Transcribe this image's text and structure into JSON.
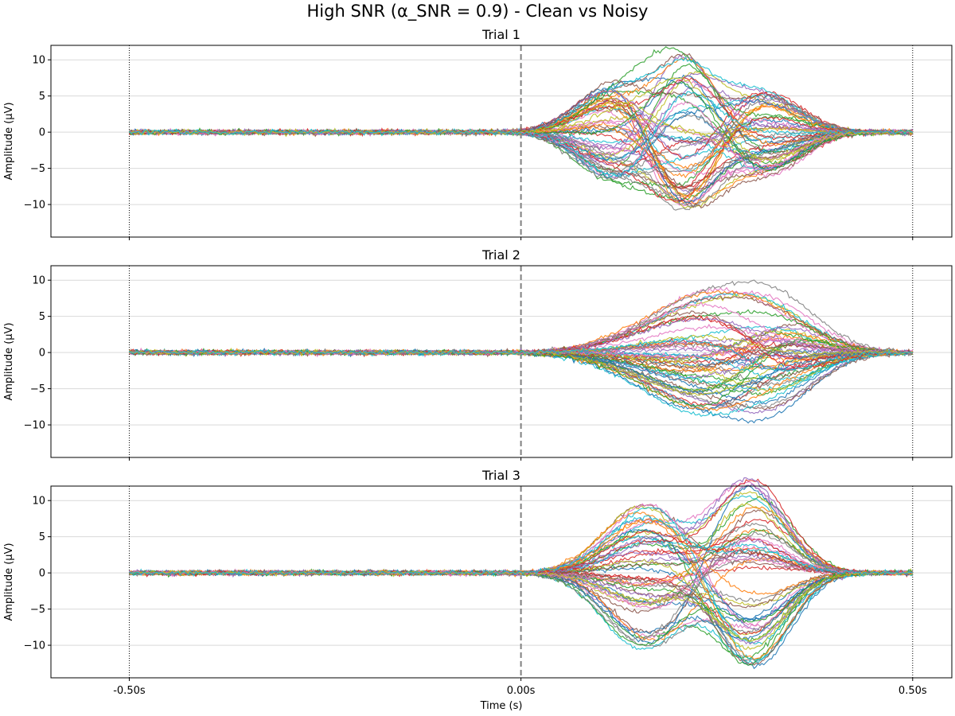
{
  "figure": {
    "title": "High SNR (α_SNR = 0.9) - Clean vs Noisy"
  },
  "chart_data": [
    {
      "type": "line",
      "title": "Trial 1",
      "ylabel": "Amplitude (μV)",
      "xlabel": "",
      "xlim": [
        -0.6,
        0.55
      ],
      "ylim": [
        -14.5,
        12
      ],
      "yticks": [
        10,
        5,
        0,
        -5,
        -10
      ],
      "grid": "horizontal",
      "event_markers": [
        {
          "x": -0.5,
          "style": "dotted"
        },
        {
          "x": 0.0,
          "style": "dashed"
        },
        {
          "x": 0.5,
          "style": "dotted"
        }
      ],
      "channel_count": 60,
      "baseline_noise_uv": 0.15,
      "components": [
        {
          "latency_s": 0.12,
          "width_s": 0.045,
          "max_amplitude_uv": 7.0
        },
        {
          "latency_s": 0.21,
          "width_s": 0.04,
          "max_amplitude_uv": -11.0
        },
        {
          "latency_s": 0.31,
          "width_s": 0.045,
          "max_amplitude_uv": 5.8
        }
      ],
      "seed": 11
    },
    {
      "type": "line",
      "title": "Trial 2",
      "ylabel": "Amplitude (μV)",
      "xlabel": "",
      "xlim": [
        -0.6,
        0.55
      ],
      "ylim": [
        -14.5,
        12
      ],
      "yticks": [
        10,
        5,
        0,
        -5,
        -10
      ],
      "grid": "horizontal",
      "event_markers": [
        {
          "x": -0.5,
          "style": "dotted"
        },
        {
          "x": 0.0,
          "style": "dashed"
        },
        {
          "x": 0.5,
          "style": "dotted"
        }
      ],
      "channel_count": 60,
      "baseline_noise_uv": 0.15,
      "components": [
        {
          "latency_s": 0.24,
          "width_s": 0.08,
          "max_amplitude_uv": 8.5
        },
        {
          "latency_s": 0.33,
          "width_s": 0.05,
          "max_amplitude_uv": 5.0
        }
      ],
      "seed": 23
    },
    {
      "type": "line",
      "title": "Trial 3",
      "ylabel": "Amplitude (μV)",
      "xlabel": "Time (s)",
      "xlim": [
        -0.6,
        0.55
      ],
      "ylim": [
        -14.5,
        12
      ],
      "yticks": [
        10,
        5,
        0,
        -5,
        -10
      ],
      "xticks": [
        -0.5,
        0.0,
        0.5
      ],
      "xtick_labels": [
        "-0.50s",
        "0.00s",
        "0.50s"
      ],
      "grid": "horizontal",
      "event_markers": [
        {
          "x": -0.5,
          "style": "dotted"
        },
        {
          "x": 0.0,
          "style": "dashed"
        },
        {
          "x": 0.5,
          "style": "dotted"
        }
      ],
      "channel_count": 60,
      "baseline_noise_uv": 0.15,
      "components": [
        {
          "latency_s": 0.16,
          "width_s": 0.05,
          "max_amplitude_uv": 10.5
        },
        {
          "latency_s": 0.295,
          "width_s": 0.045,
          "max_amplitude_uv": -13.0
        }
      ],
      "seed": 37
    }
  ],
  "palette": [
    "#1f77b4",
    "#ff7f0e",
    "#2ca02c",
    "#d62728",
    "#9467bd",
    "#8c564b",
    "#e377c2",
    "#7f7f7f",
    "#bcbd22",
    "#17becf"
  ]
}
